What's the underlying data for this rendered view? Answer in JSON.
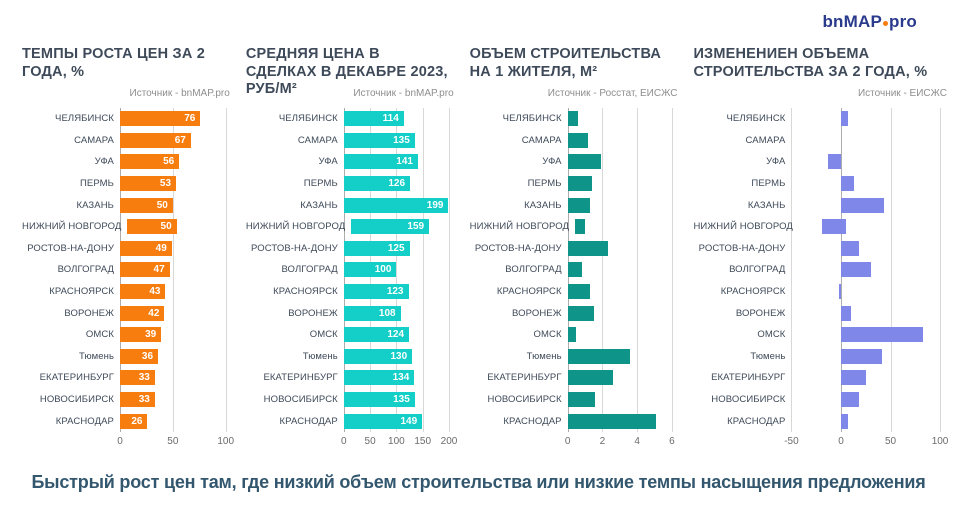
{
  "logo": {
    "bn": "bn",
    "map": "MAP",
    "pro": "pro"
  },
  "headline": "Быстрый рост цен там, где низкий объем строительства или низкие темпы насыщения предложения",
  "colors": {
    "title_text": "#3E4A59",
    "source_text": "#8E8E8E",
    "headline_text": "#33576E",
    "logo_navy": "#2A3A8C",
    "logo_orange": "#F87D0F",
    "grid_line": "#D8D8D8",
    "chart1_orange": "#F87D0F",
    "chart2_cyan": "#14CEC8",
    "chart3_teal": "#0E9488",
    "chart4_purple": "#7F87E8"
  },
  "chart_data": [
    {
      "type": "bar",
      "title": "ТЕМПЫ РОСТА ЦЕН ЗА 2 ГОДА, %",
      "source": "Источник - bnMAP.pro",
      "color": "#F87D0F",
      "show_values": true,
      "orientation": "horizontal",
      "grid": true,
      "legend": "none",
      "xlim": [
        0,
        102
      ],
      "ticks": [
        0,
        50,
        100
      ],
      "categories": [
        "ЧЕЛЯБИНСК",
        "САМАРА",
        "УФА",
        "ПЕРМЬ",
        "КАЗАНЬ",
        "НИЖНИЙ НОВГОРОД",
        "РОСТОВ-НА-ДОНУ",
        "ВОЛГОГРАД",
        "КРАСНОЯРСК",
        "ВОРОНЕЖ",
        "ОМСК",
        "Тюмень",
        "ЕКАТЕРИНБУРГ",
        "НОВОСИБИРСК",
        "КРАСНОДАР"
      ],
      "values": [
        76,
        67,
        56,
        53,
        50,
        50,
        49,
        47,
        43,
        42,
        39,
        36,
        33,
        33,
        26
      ]
    },
    {
      "type": "bar",
      "title": "СРЕДНЯЯ ЦЕНА  В СДЕЛКАХ В ДЕКАБРЕ 2023, РУБ/М²",
      "source": "Источник - bnMAP.pro",
      "color": "#14CEC8",
      "show_values": true,
      "orientation": "horizontal",
      "grid": true,
      "legend": "none",
      "xlim": [
        0,
        205
      ],
      "ticks": [
        0,
        50,
        100,
        150,
        200
      ],
      "categories": [
        "ЧЕЛЯБИНСК",
        "САМАРА",
        "УФА",
        "ПЕРМЬ",
        "КАЗАНЬ",
        "НИЖНИЙ НОВГОРОД",
        "РОСТОВ-НА-ДОНУ",
        "ВОЛГОГРАД",
        "КРАСНОЯРСК",
        "ВОРОНЕЖ",
        "ОМСК",
        "Тюмень",
        "ЕКАТЕРИНБУРГ",
        "НОВОСИБИРСК",
        "КРАСНОДАР"
      ],
      "values": [
        114,
        135,
        141,
        126,
        199,
        159,
        125,
        100,
        123,
        108,
        124,
        130,
        134,
        135,
        149
      ]
    },
    {
      "type": "bar",
      "title": "ОБЪЕМ СТРОИТЕЛЬСТВА НА 1 ЖИТЕЛЯ, М²",
      "source": "Источник - Росстат, ЕИСЖС",
      "color": "#0E9488",
      "show_values": false,
      "orientation": "horizontal",
      "grid": true,
      "legend": "none",
      "xlim": [
        0,
        6.2
      ],
      "ticks": [
        0,
        2,
        4,
        6
      ],
      "categories": [
        "ЧЕЛЯБИНСК",
        "САМАРА",
        "УФА",
        "ПЕРМЬ",
        "КАЗАНЬ",
        "НИЖНИЙ НОВГОРОД",
        "РОСТОВ-НА-ДОНУ",
        "ВОЛГОГРАД",
        "КРАСНОЯРСК",
        "ВОРОНЕЖ",
        "ОМСК",
        "Тюмень",
        "ЕКАТЕРИНБУРГ",
        "НОВОСИБИРСК",
        "КРАСНОДАР"
      ],
      "values": [
        0.6,
        1.2,
        1.9,
        1.4,
        1.3,
        0.6,
        2.3,
        0.8,
        1.3,
        1.5,
        0.5,
        3.6,
        2.6,
        1.6,
        5.1
      ]
    },
    {
      "type": "bar",
      "title": "ИЗМЕНЕНИЕН ОБЪЕМА СТРОИТЕЛЬСТВА ЗА 2 ГОДА, %",
      "source": "Источник - ЕИСЖС",
      "color": "#7F87E8",
      "show_values": false,
      "orientation": "horizontal",
      "grid": true,
      "legend": "none",
      "xlim": [
        -50,
        105
      ],
      "ticks": [
        -50,
        0,
        50,
        100
      ],
      "categories": [
        "ЧЕЛЯБИНСК",
        "САМАРА",
        "УФА",
        "ПЕРМЬ",
        "КАЗАНЬ",
        "НИЖНИЙ НОВГОРОД",
        "РОСТОВ-НА-ДОНУ",
        "ВОЛГОГРАД",
        "КРАСНОЯРСК",
        "ВОРОНЕЖ",
        "ОМСК",
        "Тюмень",
        "ЕКАТЕРИНБУРГ",
        "НОВОСИБИРСК",
        "КРАСНОДАР"
      ],
      "values": [
        7,
        0,
        -13,
        13,
        43,
        -26,
        18,
        30,
        -2,
        10,
        83,
        41,
        25,
        18,
        7
      ]
    }
  ]
}
